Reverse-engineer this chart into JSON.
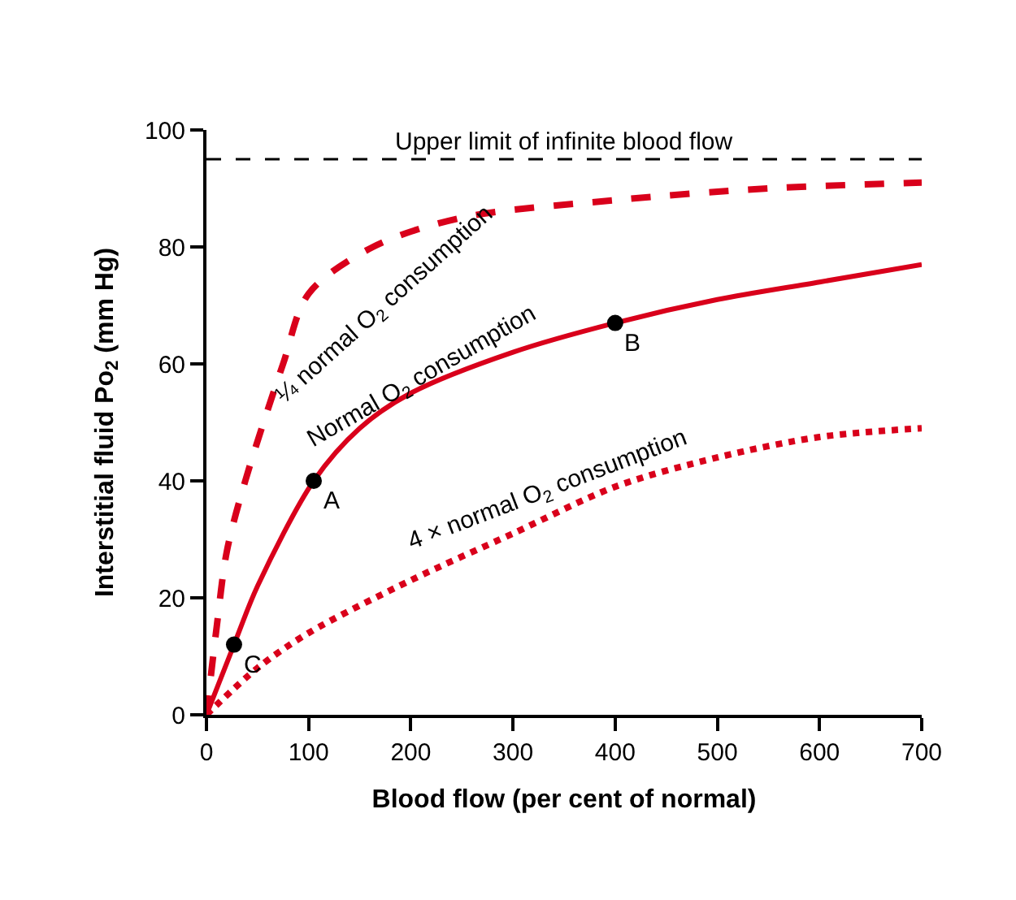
{
  "chart_data": {
    "type": "line",
    "xlabel": "Blood flow (per cent of normal)",
    "ylabel": "Interstitial fluid Po$_{2}$ (mm Hg)",
    "xlim": [
      0,
      700
    ],
    "xticks": [
      0,
      100,
      200,
      300,
      400,
      500,
      600,
      700
    ],
    "ylim": [
      0,
      100
    ],
    "yticks": [
      0,
      20,
      40,
      60,
      80,
      100
    ],
    "marker": "none",
    "series": [
      {
        "color": "#d9001b",
        "line_style": "dashed",
        "x": [
          0,
          10,
          20,
          38,
          75,
          100,
          163,
          250,
          400,
          550,
          700
        ],
        "values": [
          0,
          15,
          28,
          40,
          60,
          72,
          80,
          85,
          88,
          90,
          91
        ]
      },
      {
        "color": "#d9001b",
        "line_style": "solid",
        "x": [
          0,
          27,
          50,
          105,
          150,
          200,
          300,
          400,
          500,
          600,
          700
        ],
        "values": [
          0,
          12,
          22,
          40,
          49,
          55,
          62,
          67,
          71,
          74,
          77
        ]
      },
      {
        "color": "#d9001b",
        "line_style": "dotted",
        "x": [
          0,
          50,
          100,
          200,
          300,
          400,
          500,
          600,
          700
        ],
        "values": [
          0,
          8,
          14,
          23,
          31,
          39,
          44,
          47.5,
          49
        ]
      },
      {
        "type": "scatter",
        "color": "#000000",
        "marker": "circle",
        "x": [
          27,
          105,
          400
        ],
        "values": [
          12,
          40,
          67
        ]
      }
    ],
    "ref_lines": [
      {
        "axis": "y",
        "value": 95,
        "label": "Upper limit of infinite blood flow",
        "color": "#000000",
        "line_style": "dashed"
      }
    ],
    "annotations": [
      {
        "text": "¼ normal O$_{2}$ consumption",
        "x": 163,
        "y": 80
      },
      {
        "text": "Normal O$_{2}$ consumption",
        "x": 200,
        "y": 55
      },
      {
        "text": "4 × normal O$_{2}$ consumption",
        "x": 300,
        "y": 31
      },
      {
        "text": "A",
        "x": 105,
        "y": 40
      },
      {
        "text": "B",
        "x": 400,
        "y": 67
      },
      {
        "text": "C",
        "x": 27,
        "y": 12
      }
    ]
  }
}
